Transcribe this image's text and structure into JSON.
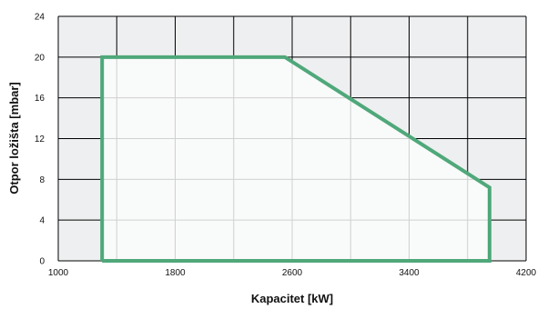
{
  "chart_data": {
    "type": "area",
    "title": "",
    "xlabel": "Kapacitet [kW]",
    "ylabel": "Otpor ložišta  [mbar]",
    "xlim": [
      1000,
      4200
    ],
    "ylim": [
      0,
      24
    ],
    "xticks": [
      1000,
      1800,
      2600,
      3400,
      4200
    ],
    "yticks": [
      0,
      4,
      8,
      12,
      16,
      20,
      24
    ],
    "grid": true,
    "legend": "none",
    "series": [
      {
        "x": [
          1300,
          1300,
          2550,
          3950,
          3950
        ],
        "y": [
          0,
          20,
          20,
          7.2,
          0
        ]
      }
    ],
    "colors": {
      "line": "#4fa87a",
      "plot_background": "#eeeff0",
      "region_fill": "#f9fafa",
      "major_grid": "#000000",
      "minor_grid": "#d0d0d0"
    }
  }
}
